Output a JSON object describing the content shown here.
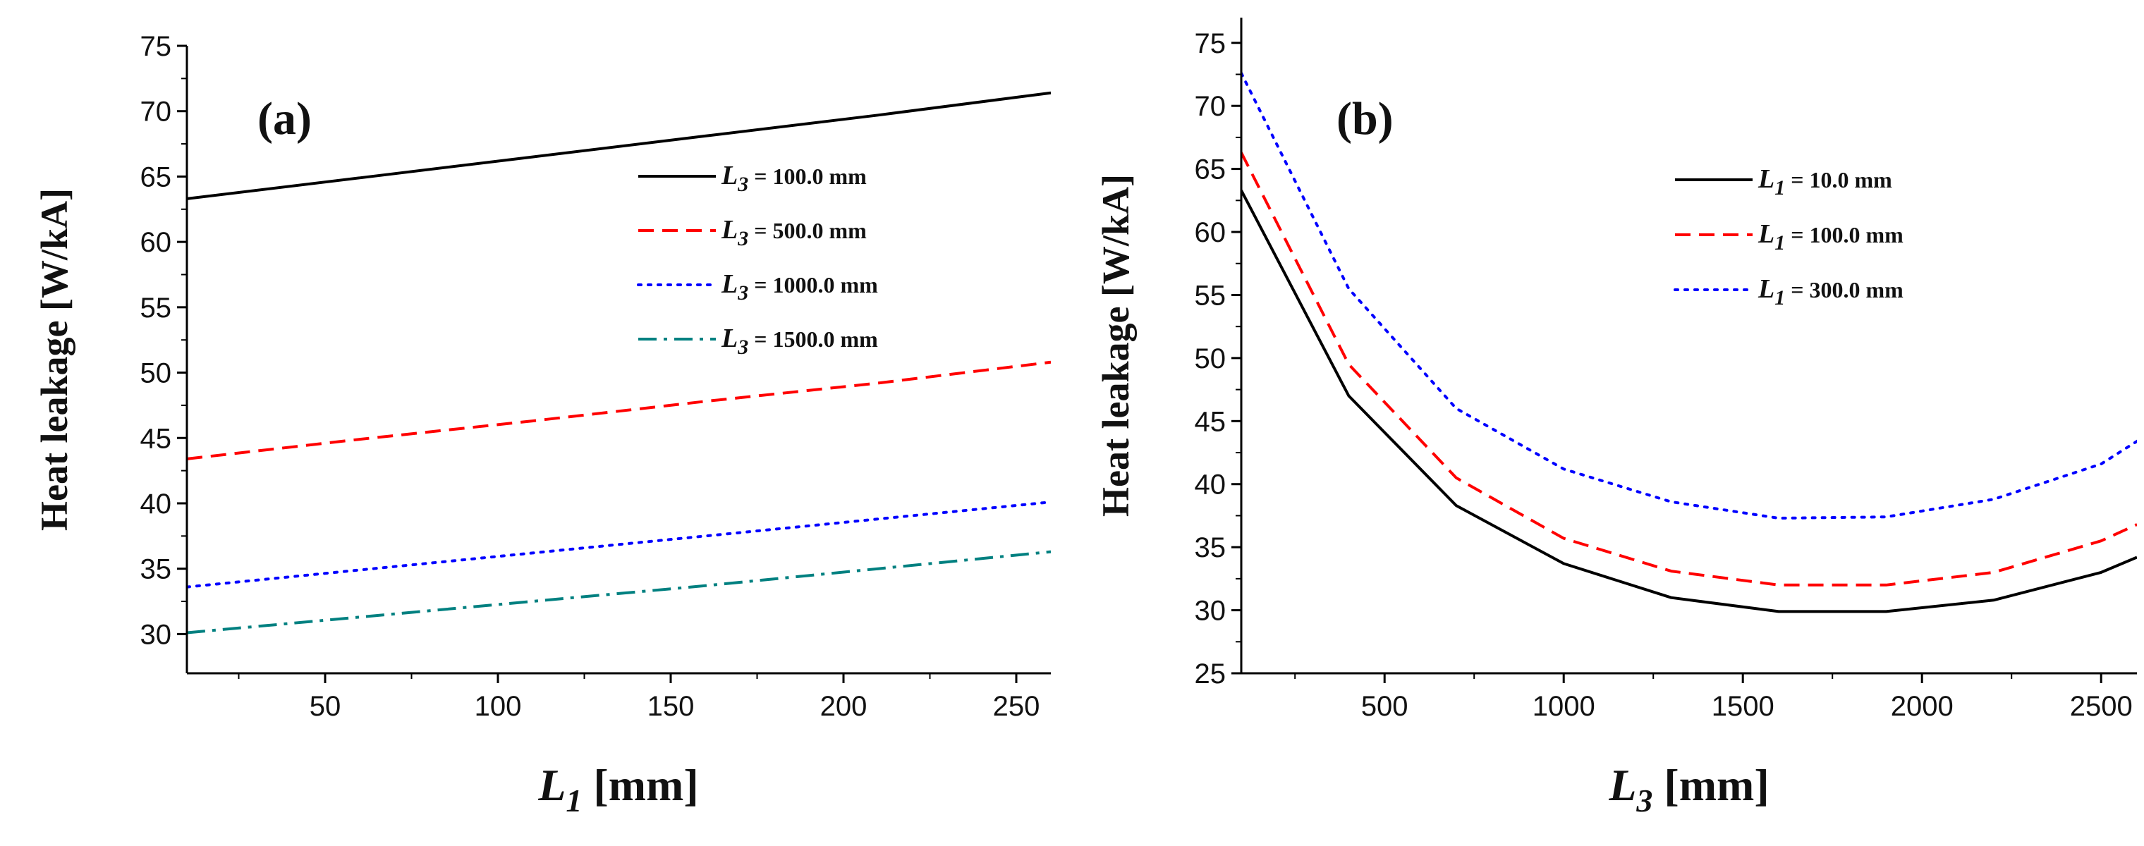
{
  "chart_data": [
    {
      "type": "line",
      "panel_label": "(a)",
      "xlabel": {
        "var": "L",
        "sub": "1",
        "unit": " [mm]"
      },
      "ylabel": "Heat leakage  [W/kA]",
      "xlim": [
        10,
        260
      ],
      "ylim": [
        27,
        75
      ],
      "xticks": [
        50,
        100,
        150,
        200,
        250
      ],
      "yticks": [
        30,
        35,
        40,
        45,
        50,
        55,
        60,
        65,
        70,
        75
      ],
      "grid": false,
      "legend_position": "upper-right",
      "series": [
        {
          "name": {
            "var": "L",
            "sub": "3",
            "rest": " = 100.0 mm"
          },
          "color": "#000000",
          "dash": "solid",
          "x": [
            10,
            60,
            110,
            160,
            210,
            260
          ],
          "y": [
            63.3,
            64.9,
            66.5,
            68.1,
            69.7,
            71.4
          ]
        },
        {
          "name": {
            "var": "L",
            "sub": "3",
            "rest": " = 500.0 mm"
          },
          "color": "#ff0000",
          "dash": "dash",
          "x": [
            10,
            60,
            110,
            160,
            210,
            260
          ],
          "y": [
            43.4,
            44.9,
            46.3,
            47.8,
            49.2,
            50.8
          ]
        },
        {
          "name": {
            "var": "L",
            "sub": "3",
            "rest": " = 1000.0 mm"
          },
          "color": "#0000ff",
          "dash": "dot",
          "x": [
            10,
            60,
            110,
            160,
            210,
            260
          ],
          "y": [
            33.6,
            34.9,
            36.2,
            37.5,
            38.8,
            40.1
          ]
        },
        {
          "name": {
            "var": "L",
            "sub": "3",
            "rest": " = 1500.0 mm"
          },
          "color": "#008080",
          "dash": "dashdot",
          "x": [
            10,
            60,
            110,
            160,
            210,
            260
          ],
          "y": [
            30.1,
            31.3,
            32.5,
            33.7,
            35.0,
            36.3
          ]
        }
      ]
    },
    {
      "type": "line",
      "panel_label": "(b)",
      "xlabel": {
        "var": "L",
        "sub": "3",
        "unit": " [mm]"
      },
      "ylabel": "Heat leakage  [W/kA]",
      "xlim": [
        100,
        2600
      ],
      "ylim": [
        25,
        77
      ],
      "xticks": [
        500,
        1000,
        1500,
        2000,
        2500
      ],
      "yticks": [
        25,
        30,
        35,
        40,
        45,
        50,
        55,
        60,
        65,
        70,
        75
      ],
      "grid": false,
      "legend_position": "upper-right",
      "series": [
        {
          "name": {
            "var": "L",
            "sub": "1",
            "rest": " = 10.0 mm"
          },
          "color": "#000000",
          "dash": "solid",
          "x": [
            100,
            400,
            700,
            1000,
            1300,
            1600,
            1900,
            2200,
            2500,
            2600
          ],
          "y": [
            63.3,
            47.0,
            38.3,
            33.7,
            31.0,
            29.9,
            29.9,
            30.8,
            33.0,
            34.2
          ]
        },
        {
          "name": {
            "var": "L",
            "sub": "1",
            "rest": " = 100.0 mm"
          },
          "color": "#ff0000",
          "dash": "dash",
          "x": [
            100,
            400,
            700,
            1000,
            1300,
            1600,
            1900,
            2200,
            2500,
            2600
          ],
          "y": [
            66.3,
            49.5,
            40.5,
            35.7,
            33.1,
            32.0,
            32.0,
            33.0,
            35.5,
            36.8
          ]
        },
        {
          "name": {
            "var": "L",
            "sub": "1",
            "rest": " = 300.0 mm"
          },
          "color": "#0000ff",
          "dash": "dot",
          "x": [
            100,
            400,
            700,
            1000,
            1300,
            1600,
            1900,
            2200,
            2500,
            2600
          ],
          "y": [
            72.6,
            55.5,
            46.0,
            41.2,
            38.6,
            37.3,
            37.4,
            38.8,
            41.6,
            43.4
          ]
        }
      ]
    }
  ]
}
